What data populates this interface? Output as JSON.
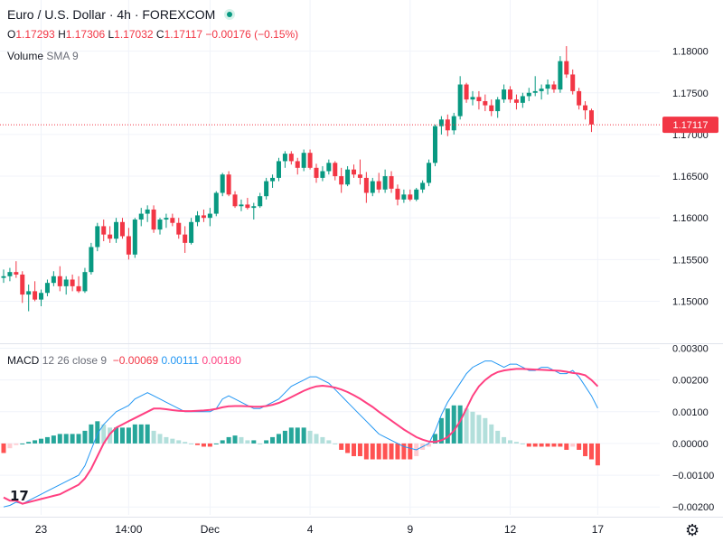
{
  "header": {
    "symbol": "Euro / U.S. Dollar · 4h · FOREXCOM",
    "o_label": "O",
    "o_val": "1.17293",
    "h_label": "H",
    "h_val": "1.17306",
    "l_label": "L",
    "l_val": "1.17032",
    "c_label": "C",
    "c_val": "1.17117",
    "change": "−0.00176 (−0.15%)"
  },
  "volume": {
    "label": "Volume",
    "param": "SMA 9"
  },
  "macd": {
    "label": "MACD",
    "params": "12 26 close 9",
    "hist_val": "−0.00069",
    "macd_val": "0.00111",
    "signal_val": "0.00180"
  },
  "colors": {
    "up": "#089981",
    "down": "#f23645",
    "hist_up_strong": "#26a69a",
    "hist_up_weak": "#b2dfdb",
    "hist_down_strong": "#ff5252",
    "hist_down_weak": "#ffcdd2",
    "macd_line": "#2196f3",
    "signal_line": "#ff4081",
    "grid": "#f0f3fa",
    "axis_text": "#131722"
  },
  "price_axis": {
    "ticks": [
      "1.18000",
      "1.17500",
      "1.17000",
      "1.16500",
      "1.16000",
      "1.15500",
      "1.15000"
    ],
    "last_price": "1.17117"
  },
  "macd_axis": {
    "ticks": [
      "0.00300",
      "0.00200",
      "0.00100",
      "0.00000",
      "−0.00100",
      "−0.00200"
    ]
  },
  "time_axis": {
    "labels": [
      "23",
      "14:00",
      "Dec",
      "4",
      "9",
      "12",
      "17"
    ]
  },
  "chart_data": [
    {
      "type": "candlestick",
      "title": "Euro / U.S. Dollar · 4h · FOREXCOM",
      "ylim": [
        1.1455,
        1.1818
      ],
      "x_labels": [
        "23",
        "14:00",
        "Dec",
        "4",
        "9",
        "12",
        "17"
      ],
      "ohlc": [
        [
          1.1528,
          1.1538,
          1.1522,
          1.153
        ],
        [
          1.153,
          1.154,
          1.1524,
          1.1535
        ],
        [
          1.1535,
          1.1548,
          1.1528,
          1.1532
        ],
        [
          1.1532,
          1.1536,
          1.1498,
          1.1508
        ],
        [
          1.1508,
          1.152,
          1.1488,
          1.1512
        ],
        [
          1.1512,
          1.1524,
          1.15,
          1.1502
        ],
        [
          1.1502,
          1.1514,
          1.1494,
          1.151
        ],
        [
          1.151,
          1.1526,
          1.1506,
          1.1522
        ],
        [
          1.1522,
          1.1536,
          1.1518,
          1.153
        ],
        [
          1.153,
          1.1542,
          1.1512,
          1.1518
        ],
        [
          1.1518,
          1.153,
          1.1508,
          1.1526
        ],
        [
          1.1526,
          1.1532,
          1.1512,
          1.1518
        ],
        [
          1.1518,
          1.153,
          1.151,
          1.1512
        ],
        [
          1.1512,
          1.154,
          1.151,
          1.1535
        ],
        [
          1.1535,
          1.157,
          1.1532,
          1.1565
        ],
        [
          1.1565,
          1.1594,
          1.156,
          1.159
        ],
        [
          1.159,
          1.1598,
          1.1572,
          1.158
        ],
        [
          1.158,
          1.159,
          1.157,
          1.1575
        ],
        [
          1.1575,
          1.16,
          1.157,
          1.1595
        ],
        [
          1.1595,
          1.16,
          1.1575,
          1.1578
        ],
        [
          1.1578,
          1.1588,
          1.155,
          1.1556
        ],
        [
          1.1556,
          1.16,
          1.1552,
          1.1598
        ],
        [
          1.1598,
          1.1612,
          1.159,
          1.1605
        ],
        [
          1.1605,
          1.1615,
          1.1595,
          1.161
        ],
        [
          1.161,
          1.1615,
          1.1582,
          1.1586
        ],
        [
          1.1586,
          1.16,
          1.158,
          1.1598
        ],
        [
          1.1598,
          1.1605,
          1.1588,
          1.16
        ],
        [
          1.16,
          1.1605,
          1.159,
          1.1594
        ],
        [
          1.1594,
          1.16,
          1.1575,
          1.158
        ],
        [
          1.158,
          1.159,
          1.1558,
          1.157
        ],
        [
          1.157,
          1.16,
          1.1568,
          1.1595
        ],
        [
          1.1595,
          1.1608,
          1.159,
          1.1603
        ],
        [
          1.1603,
          1.161,
          1.1595,
          1.16
        ],
        [
          1.16,
          1.1612,
          1.159,
          1.1605
        ],
        [
          1.1605,
          1.1632,
          1.1602,
          1.163
        ],
        [
          1.163,
          1.1654,
          1.1626,
          1.1652
        ],
        [
          1.1652,
          1.1656,
          1.1626,
          1.1628
        ],
        [
          1.1628,
          1.1632,
          1.1612,
          1.1614
        ],
        [
          1.1614,
          1.1622,
          1.1608,
          1.1616
        ],
        [
          1.1616,
          1.1624,
          1.161,
          1.1612
        ],
        [
          1.1612,
          1.1618,
          1.1598,
          1.1614
        ],
        [
          1.1614,
          1.163,
          1.1612,
          1.1626
        ],
        [
          1.1626,
          1.1648,
          1.1622,
          1.1644
        ],
        [
          1.1644,
          1.1652,
          1.1636,
          1.1648
        ],
        [
          1.1648,
          1.1672,
          1.1644,
          1.1668
        ],
        [
          1.1668,
          1.168,
          1.166,
          1.1677
        ],
        [
          1.1677,
          1.168,
          1.1664,
          1.1668
        ],
        [
          1.1668,
          1.1672,
          1.1652,
          1.166
        ],
        [
          1.166,
          1.1682,
          1.1656,
          1.1678
        ],
        [
          1.1678,
          1.1682,
          1.1658,
          1.166
        ],
        [
          1.166,
          1.1665,
          1.1642,
          1.1648
        ],
        [
          1.1648,
          1.1662,
          1.1644,
          1.1656
        ],
        [
          1.1656,
          1.167,
          1.1652,
          1.1666
        ],
        [
          1.1666,
          1.1668,
          1.1645,
          1.165
        ],
        [
          1.165,
          1.166,
          1.163,
          1.164
        ],
        [
          1.164,
          1.1662,
          1.1638,
          1.1658
        ],
        [
          1.1658,
          1.1664,
          1.1648,
          1.1652
        ],
        [
          1.1652,
          1.167,
          1.164,
          1.1648
        ],
        [
          1.1648,
          1.1655,
          1.1618,
          1.163
        ],
        [
          1.163,
          1.1648,
          1.1626,
          1.1644
        ],
        [
          1.1644,
          1.1654,
          1.163,
          1.1634
        ],
        [
          1.1634,
          1.1658,
          1.163,
          1.165
        ],
        [
          1.165,
          1.1656,
          1.163,
          1.1635
        ],
        [
          1.1635,
          1.164,
          1.1615,
          1.1622
        ],
        [
          1.1622,
          1.1634,
          1.1618,
          1.1628
        ],
        [
          1.1628,
          1.1634,
          1.162,
          1.1622
        ],
        [
          1.1622,
          1.1636,
          1.162,
          1.1634
        ],
        [
          1.1634,
          1.1645,
          1.163,
          1.1642
        ],
        [
          1.1642,
          1.167,
          1.1638,
          1.1666
        ],
        [
          1.1666,
          1.1712,
          1.1662,
          1.171
        ],
        [
          1.171,
          1.1722,
          1.17,
          1.1718
        ],
        [
          1.1718,
          1.1724,
          1.1698,
          1.1705
        ],
        [
          1.1705,
          1.1726,
          1.17,
          1.1722
        ],
        [
          1.1722,
          1.177,
          1.1718,
          1.176
        ],
        [
          1.176,
          1.1762,
          1.1738,
          1.1742
        ],
        [
          1.1742,
          1.1752,
          1.1735,
          1.1745
        ],
        [
          1.1745,
          1.1752,
          1.173,
          1.174
        ],
        [
          1.174,
          1.1748,
          1.1728,
          1.1735
        ],
        [
          1.1735,
          1.1742,
          1.1722,
          1.1728
        ],
        [
          1.1728,
          1.1745,
          1.172,
          1.1742
        ],
        [
          1.1742,
          1.176,
          1.1738,
          1.1754
        ],
        [
          1.1754,
          1.1758,
          1.1738,
          1.1742
        ],
        [
          1.1742,
          1.1748,
          1.173,
          1.1738
        ],
        [
          1.1738,
          1.175,
          1.1732,
          1.1746
        ],
        [
          1.1746,
          1.1756,
          1.174,
          1.175
        ],
        [
          1.175,
          1.177,
          1.1746,
          1.1752
        ],
        [
          1.1752,
          1.176,
          1.1742,
          1.1755
        ],
        [
          1.1755,
          1.1766,
          1.1748,
          1.176
        ],
        [
          1.176,
          1.1764,
          1.175,
          1.1754
        ],
        [
          1.1754,
          1.1794,
          1.175,
          1.1788
        ],
        [
          1.1788,
          1.1806,
          1.1768,
          1.1772
        ],
        [
          1.1772,
          1.1778,
          1.1748,
          1.1752
        ],
        [
          1.1752,
          1.1756,
          1.173,
          1.1735
        ],
        [
          1.1735,
          1.174,
          1.1718,
          1.1729
        ],
        [
          1.1729,
          1.1731,
          1.1703,
          1.1712
        ]
      ]
    },
    {
      "type": "line",
      "title": "MACD 12 26 close 9",
      "ylim": [
        -0.00225,
        0.0031
      ],
      "series": [
        {
          "name": "MACD",
          "values": [
            -0.002,
            -0.00195,
            -0.00185,
            -0.0019,
            -0.0018,
            -0.0017,
            -0.0016,
            -0.0015,
            -0.0014,
            -0.0013,
            -0.0012,
            -0.0011,
            -0.001,
            -0.0007,
            -0.0002,
            0.0003,
            0.0006,
            0.0008,
            0.001,
            0.0011,
            0.0012,
            0.0014,
            0.0015,
            0.0016,
            0.0015,
            0.0014,
            0.0013,
            0.0012,
            0.0011,
            0.001,
            0.001,
            0.001,
            0.001,
            0.001,
            0.0011,
            0.0014,
            0.0015,
            0.0014,
            0.0013,
            0.0012,
            0.0011,
            0.0011,
            0.0012,
            0.0013,
            0.0014,
            0.0016,
            0.0018,
            0.0019,
            0.002,
            0.0021,
            0.0021,
            0.002,
            0.0019,
            0.0017,
            0.0015,
            0.0013,
            0.0011,
            0.0009,
            0.0007,
            0.0005,
            0.0003,
            0.0002,
            0.0001,
            0.0,
            -0.0001,
            -0.00015,
            -0.0002,
            -0.0001,
            0.0,
            0.0004,
            0.0009,
            0.0013,
            0.0016,
            0.0019,
            0.0022,
            0.0024,
            0.0025,
            0.0026,
            0.0026,
            0.0025,
            0.0024,
            0.0025,
            0.0025,
            0.0024,
            0.0023,
            0.0023,
            0.0024,
            0.0024,
            0.0023,
            0.0022,
            0.0022,
            0.0023,
            0.0021,
            0.0018,
            0.0015,
            0.00111
          ]
        },
        {
          "name": "Signal",
          "values": [
            -0.0017,
            -0.0018,
            -0.0018,
            -0.0019,
            -0.00185,
            -0.0018,
            -0.00175,
            -0.0017,
            -0.00165,
            -0.0016,
            -0.0015,
            -0.0014,
            -0.0013,
            -0.0011,
            -0.0008,
            -0.0004,
            0.0,
            0.0003,
            0.0005,
            0.0006,
            0.0007,
            0.0008,
            0.0009,
            0.001,
            0.0011,
            0.0011,
            0.00108,
            0.00105,
            0.00103,
            0.00102,
            0.00102,
            0.00103,
            0.00104,
            0.00106,
            0.00109,
            0.00114,
            0.00117,
            0.00118,
            0.00118,
            0.00117,
            0.00116,
            0.00116,
            0.00118,
            0.00122,
            0.00128,
            0.00136,
            0.00146,
            0.00156,
            0.00166,
            0.00174,
            0.0018,
            0.00182,
            0.0018,
            0.00176,
            0.0017,
            0.00162,
            0.00152,
            0.00141,
            0.00128,
            0.00115,
            0.001,
            0.00086,
            0.00072,
            0.00058,
            0.00044,
            0.00032,
            0.0002,
            0.00012,
            6e-05,
            5e-05,
            0.0001,
            0.0002,
            0.0004,
            0.0007,
            0.0011,
            0.0015,
            0.0018,
            0.002,
            0.00215,
            0.00225,
            0.0023,
            0.00233,
            0.00235,
            0.00235,
            0.00234,
            0.00233,
            0.00232,
            0.00231,
            0.0023,
            0.00229,
            0.00226,
            0.00222,
            0.0022,
            0.00215,
            0.002,
            0.0018
          ]
        },
        {
          "name": "Histogram",
          "values": [
            -0.0003,
            -0.00015,
            -5e-05,
            0.0,
            5e-05,
            0.0001,
            0.00015,
            0.0002,
            0.00025,
            0.0003,
            0.0003,
            0.0003,
            0.0003,
            0.0004,
            0.0006,
            0.0007,
            0.0006,
            0.0005,
            0.0005,
            0.0005,
            0.0005,
            0.0006,
            0.0006,
            0.0006,
            0.0004,
            0.0003,
            0.0002,
            0.00015,
            0.0001,
            5e-05,
            0.0,
            -5e-05,
            -0.0001,
            -0.0001,
            0.0,
            0.0001,
            0.0002,
            0.00025,
            0.0002,
            0.0001,
            0.0001,
            0.0,
            0.0001,
            0.0002,
            0.0003,
            0.0004,
            0.0005,
            0.0005,
            0.0005,
            0.0004,
            0.0003,
            0.0002,
            0.0001,
            0.0,
            -0.0002,
            -0.0003,
            -0.0004,
            -0.0004,
            -0.0005,
            -0.0005,
            -0.0005,
            -0.0005,
            -0.0005,
            -0.0005,
            -0.0005,
            -0.0005,
            -0.0004,
            -0.0002,
            -0.0001,
            0.0003,
            0.0008,
            0.0011,
            0.0012,
            0.0012,
            0.0011,
            0.001,
            0.0009,
            0.0008,
            0.0006,
            0.0004,
            0.0002,
            0.0001,
            5e-05,
            0.0,
            -0.0001,
            -0.0001,
            -0.0001,
            -0.0001,
            -0.0001,
            -0.0001,
            -0.0002,
            -0.0001,
            -0.0002,
            -0.0004,
            -0.0005,
            -0.00069
          ]
        }
      ]
    }
  ]
}
